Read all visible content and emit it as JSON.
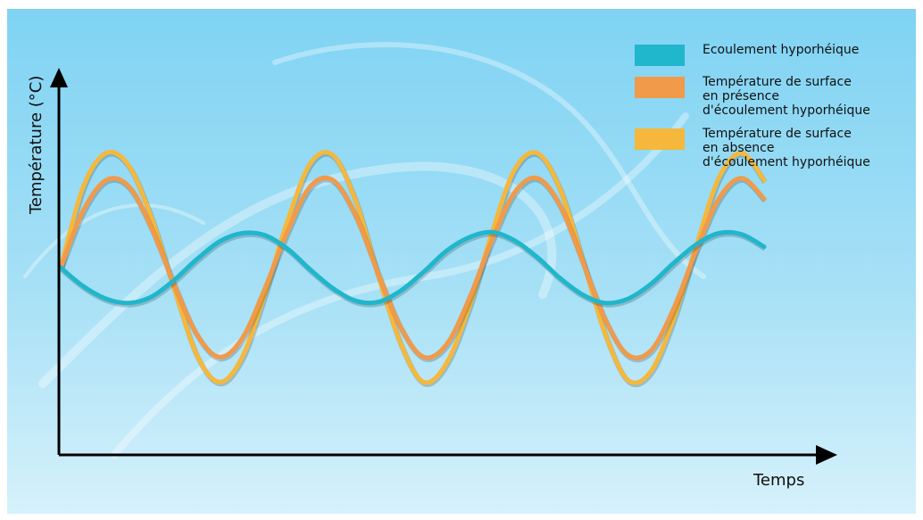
{
  "chart_data": {
    "type": "line",
    "title": "",
    "xlabel": "Temps",
    "ylabel": "Température (°C)",
    "xlim": [
      0,
      15.5
    ],
    "ylim": [
      -1.2,
      1.2
    ],
    "legend_position": "top-right",
    "series": [
      {
        "name": "Ecoulement hyporhéique",
        "color": "#20b6cc",
        "x": [
          0,
          0.5,
          1,
          1.5,
          2,
          2.5,
          3,
          3.5,
          4,
          4.5,
          5,
          5.5,
          6,
          6.5,
          7,
          7.5,
          8,
          8.5,
          9,
          9.5,
          10,
          10.5,
          11,
          11.5,
          12,
          12.5,
          13,
          13.5,
          14,
          14.5,
          15,
          15.5
        ],
        "y": [
          0,
          -0.18,
          -0.3,
          -0.34,
          -0.28,
          -0.12,
          0.08,
          0.25,
          0.33,
          0.31,
          0.18,
          -0.02,
          -0.2,
          -0.32,
          -0.33,
          -0.22,
          -0.04,
          0.16,
          0.29,
          0.34,
          0.26,
          0.1,
          -0.1,
          -0.26,
          -0.34,
          -0.3,
          -0.16,
          0.04,
          0.22,
          0.33,
          0.32,
          0.2
        ]
      },
      {
        "name": "Température de surface\nen présence\nd'écoulement hyporhéique",
        "color": "#f09a4a",
        "x": [
          0,
          0.5,
          1,
          1.5,
          2,
          2.5,
          3,
          3.5,
          4,
          4.5,
          5,
          5.5,
          6,
          6.5,
          7,
          7.5,
          8,
          8.5,
          9,
          9.5,
          10,
          10.5,
          11,
          11.5,
          12,
          12.5,
          13,
          13.5,
          14,
          14.5,
          15,
          15.5
        ],
        "y": [
          0,
          0.55,
          0.84,
          0.78,
          0.38,
          -0.16,
          -0.64,
          -0.86,
          -0.68,
          -0.2,
          0.35,
          0.78,
          0.84,
          0.5,
          -0.06,
          -0.58,
          -0.86,
          -0.74,
          -0.3,
          0.26,
          0.72,
          0.86,
          0.6,
          0.06,
          -0.5,
          -0.84,
          -0.8,
          -0.4,
          0.16,
          0.66,
          0.86,
          0.66
        ]
      },
      {
        "name": "Température de surface\nen absence\nd'écoulement hyporhéique",
        "color": "#f5b83c",
        "x": [
          0,
          0.5,
          1,
          1.5,
          2,
          2.5,
          3,
          3.5,
          4,
          4.5,
          5,
          5.5,
          6,
          6.5,
          7,
          7.5,
          8,
          8.5,
          9,
          9.5,
          10,
          10.5,
          11,
          11.5,
          12,
          12.5,
          13,
          13.5,
          14,
          14.5,
          15,
          15.5
        ],
        "y": [
          0,
          0.78,
          1.1,
          0.98,
          0.48,
          -0.2,
          -0.84,
          -1.1,
          -0.86,
          -0.25,
          0.45,
          1.0,
          1.08,
          0.64,
          -0.08,
          -0.74,
          -1.1,
          -0.92,
          -0.38,
          0.33,
          0.94,
          1.1,
          0.76,
          0.08,
          -0.64,
          -1.08,
          -1.0,
          -0.5,
          0.2,
          0.86,
          1.1,
          0.84
        ]
      }
    ]
  }
}
